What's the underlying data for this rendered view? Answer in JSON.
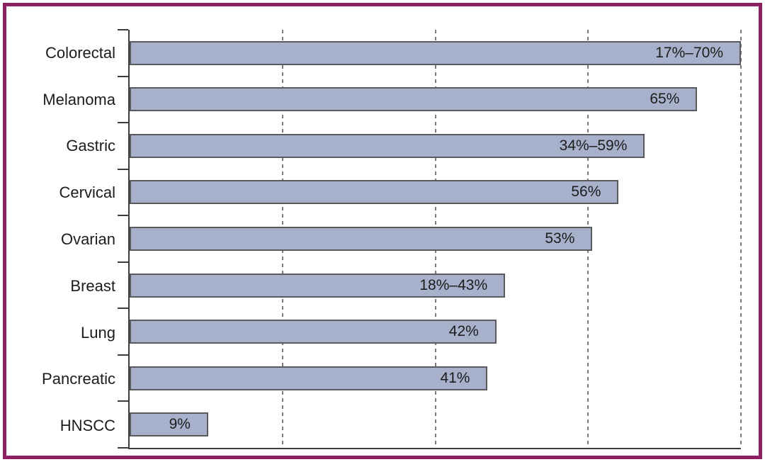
{
  "frame": {
    "border_color": "#8C2060"
  },
  "chart_data": {
    "type": "bar",
    "orientation": "horizontal",
    "title": "",
    "xlabel": "",
    "ylabel": "",
    "categories": [
      "Colorectal",
      "Melanoma",
      "Gastric",
      "Cervical",
      "Ovarian",
      "Breast",
      "Lung",
      "Pancreatic",
      "HNSCC"
    ],
    "values": [
      70,
      65,
      59,
      56,
      53,
      43,
      42,
      41,
      9
    ],
    "bar_labels": [
      "17%–70%",
      "65%",
      "34%–59%",
      "56%",
      "53%",
      "18%–43%",
      "42%",
      "41%",
      "9%"
    ],
    "xlim": [
      0,
      70
    ],
    "gridline_values": [
      17.5,
      35,
      52.5,
      70
    ],
    "grid": "vertical-dashed",
    "legend": "none",
    "bar_color": "#A8B1CB",
    "bar_border_color": "#595A5E",
    "axis_color": "#3d3d3d",
    "gridline_color": "#7a7a7a",
    "text_color": "#1c1c1c"
  }
}
